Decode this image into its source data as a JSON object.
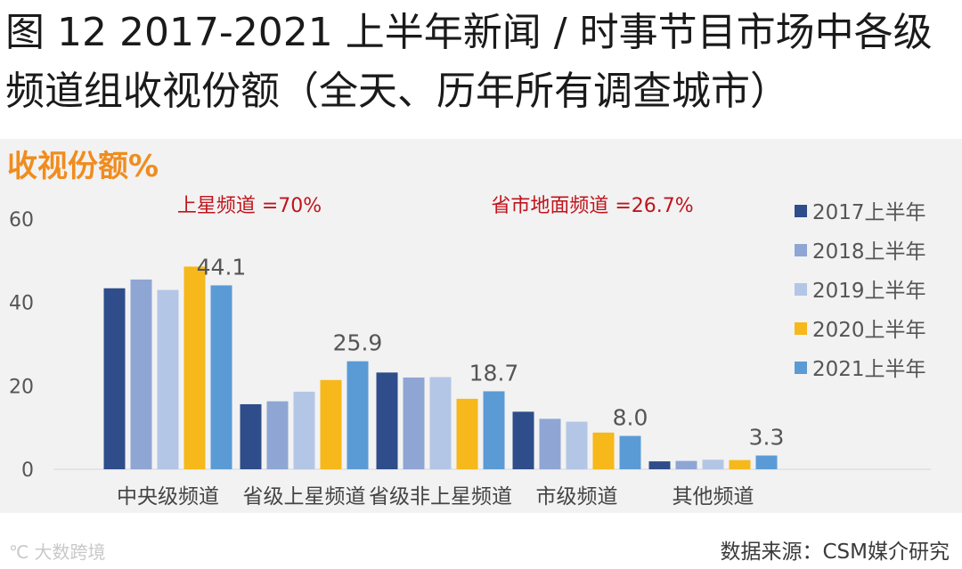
{
  "title": "图 12 2017-2021 上半年新闻 / 时事节目市场中各级频道组收视份额（全天、历年所有调查城市）",
  "footer": {
    "watermark_logo": "℃",
    "watermark": "大数跨境",
    "source": "数据来源：CSM媒介研究"
  },
  "chart_data": {
    "type": "bar",
    "title": "收视份额%",
    "xlabel": "",
    "ylabel": "收视份额%",
    "ylim": [
      0,
      60
    ],
    "yticks": [
      0,
      20,
      40,
      60
    ],
    "grid": false,
    "legend_position": "right",
    "categories": [
      "中央级频道",
      "省级上星频道",
      "省级非上星频道",
      "市级频道",
      "其他频道"
    ],
    "series": [
      {
        "name": "2017上半年",
        "color": "#2f4d8a",
        "values": [
          43.4,
          15.6,
          23.2,
          13.8,
          1.9
        ]
      },
      {
        "name": "2018上半年",
        "color": "#8fa6d4",
        "values": [
          45.5,
          16.3,
          22.0,
          12.1,
          2.0
        ]
      },
      {
        "name": "2019上半年",
        "color": "#b4c6e6",
        "values": [
          43.0,
          18.6,
          22.1,
          11.4,
          2.3
        ]
      },
      {
        "name": "2020上半年",
        "color": "#f6b81a",
        "values": [
          48.6,
          21.4,
          16.9,
          8.8,
          2.2
        ]
      },
      {
        "name": "2021上半年",
        "color": "#5b9bd5",
        "values": [
          44.1,
          25.9,
          18.7,
          8.0,
          3.3
        ]
      }
    ],
    "data_labels": [
      {
        "category_index": 0,
        "series_index": 4,
        "text": "44.1"
      },
      {
        "category_index": 1,
        "series_index": 4,
        "text": "25.9"
      },
      {
        "category_index": 2,
        "series_index": 4,
        "text": "18.7"
      },
      {
        "category_index": 3,
        "series_index": 4,
        "text": "8.0"
      },
      {
        "category_index": 4,
        "series_index": 4,
        "text": "3.3"
      }
    ],
    "annotations": [
      {
        "text": "上星频道 =70%",
        "color": "#c0141c",
        "anchor": "above-group-1"
      },
      {
        "text": "省市地面频道 =26.7%",
        "color": "#c0141c",
        "anchor": "above-group-3"
      }
    ]
  }
}
